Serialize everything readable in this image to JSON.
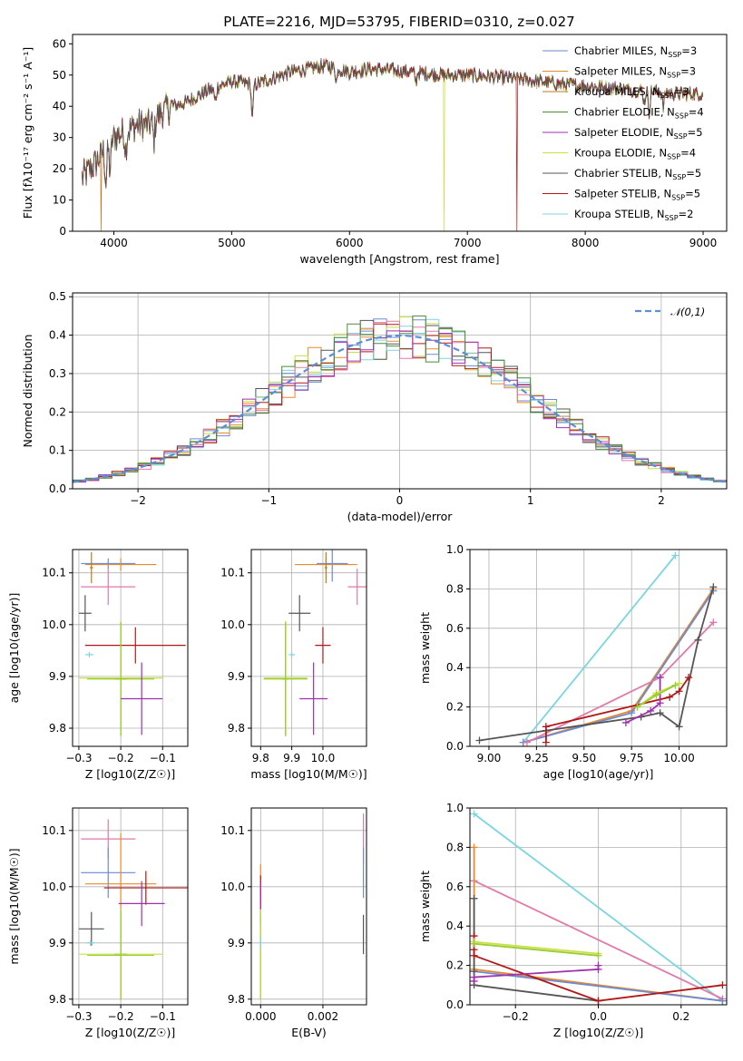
{
  "figure_title": "PLATE=2216, MJD=53795, FIBERID=0310, z=0.027",
  "colors": {
    "Chabrier MILES": "#6d8ad6",
    "Salpeter MILES": "#e58a2d",
    "Kroupa MILES": "#c07818",
    "Chabrier ELODIE": "#4a8a3a",
    "Salpeter ELODIE": "#a030b0",
    "Kroupa ELODIE": "#c8e040",
    "Chabrier STELIB": "#555555",
    "Salpeter STELIB": "#b01818",
    "Kroupa STELIB": "#7ad6de",
    "pink": "#e07aa8",
    "lime": "#9acd32",
    "gauss": "#5b8fd6"
  },
  "chart_data": [
    {
      "id": "spectrum",
      "type": "line",
      "title": "PLATE=2216, MJD=53795, FIBERID=0310, z=0.027",
      "xlabel": "wavelength [Angstrom, rest frame]",
      "ylabel": "Flux [fλ10⁻¹⁷ erg cm⁻² s⁻¹ A⁻¹]",
      "xlim": [
        3650,
        9200
      ],
      "ylim": [
        0,
        63
      ],
      "xticks": [
        "4000",
        "5000",
        "6000",
        "7000",
        "8000",
        "9000"
      ],
      "yticks": [
        "0",
        "10",
        "20",
        "30",
        "40",
        "50",
        "60"
      ],
      "legend_position": "top-right",
      "legend": [
        "Chabrier MILES, N_SSP=3",
        "Salpeter MILES, N_SSP=3",
        "Kroupa MILES, N_SSP=3",
        "Chabrier ELODIE, N_SSP=4",
        "Salpeter ELODIE, N_SSP=5",
        "Kroupa ELODIE, N_SSP=4",
        "Chabrier STELIB, N_SSP=5",
        "Salpeter STELIB, N_SSP=5",
        "Kroupa STELIB, N_SSP=2"
      ],
      "continuum": [
        [
          3730,
          17
        ],
        [
          3850,
          22
        ],
        [
          3920,
          26
        ],
        [
          4000,
          30
        ],
        [
          4100,
          32
        ],
        [
          4200,
          34
        ],
        [
          4300,
          34
        ],
        [
          4400,
          38
        ],
        [
          4500,
          40
        ],
        [
          4600,
          41
        ],
        [
          4800,
          45
        ],
        [
          5000,
          48
        ],
        [
          5200,
          47
        ],
        [
          5500,
          51
        ],
        [
          5800,
          53
        ],
        [
          6000,
          51
        ],
        [
          6200,
          52
        ],
        [
          6500,
          51
        ],
        [
          6800,
          50
        ],
        [
          7000,
          50
        ],
        [
          7400,
          49
        ],
        [
          7800,
          47
        ],
        [
          8200,
          46
        ],
        [
          8500,
          45
        ],
        [
          8800,
          44
        ],
        [
          9000,
          44
        ]
      ],
      "dropouts": [
        {
          "series": "Kroupa ELODIE",
          "x": 6800,
          "y": 0
        },
        {
          "series": "Salpeter STELIB",
          "x": 7420,
          "y": 0
        },
        {
          "series": "Kroupa MILES",
          "x": 3890,
          "y": 0
        }
      ]
    },
    {
      "id": "residuals",
      "type": "step-histogram",
      "xlabel": "(data-model)/error",
      "ylabel": "Normed distribution",
      "xlim": [
        -2.5,
        2.5
      ],
      "ylim": [
        0,
        0.51
      ],
      "xticks": [
        "-2",
        "-1",
        "0",
        "1",
        "2"
      ],
      "yticks": [
        "0.0",
        "0.1",
        "0.2",
        "0.3",
        "0.4",
        "0.5"
      ],
      "legend_position": "top-right",
      "legend": [
        "N(0,1)"
      ],
      "bin_width": 0.1
    },
    {
      "id": "age-Z",
      "type": "errorbar",
      "xlabel": "Z [log10(Z/Z☉)]",
      "ylabel": "age  [log10(age/yr)]",
      "xlim": [
        -0.315,
        -0.04
      ],
      "ylim": [
        9.765,
        10.145
      ],
      "xticks": [
        "-0.3",
        "-0.2",
        "-0.1"
      ],
      "yticks": [
        "9.8",
        "9.9",
        "10.0",
        "10.1"
      ],
      "points": [
        {
          "color": "Chabrier MILES",
          "x": -0.23,
          "xerr": 0.065,
          "y": 10.118,
          "yerr": 0.01
        },
        {
          "color": "Salpeter MILES",
          "x": -0.2,
          "xerr": 0.085,
          "y": 10.116,
          "yerr": 0.012
        },
        {
          "color": "Kroupa MILES",
          "x": -0.27,
          "xerr": 0.004,
          "y": 10.11,
          "yerr": 0.03
        },
        {
          "color": "pink",
          "x": -0.23,
          "xerr": 0.065,
          "y": 10.073,
          "yerr": 0.035
        },
        {
          "color": "Chabrier STELIB",
          "x": -0.285,
          "xerr": 0.015,
          "y": 10.022,
          "yerr": 0.035
        },
        {
          "color": "Salpeter STELIB",
          "x": -0.165,
          "xerr": 0.12,
          "y": 9.96,
          "yerr": 0.035
        },
        {
          "color": "Kroupa STELIB",
          "x": -0.275,
          "xerr": 0.01,
          "y": 9.942,
          "yerr": 0.005
        },
        {
          "color": "Chabrier ELODIE",
          "x": -0.2,
          "xerr": 0.015,
          "y": 9.895,
          "yerr": 0.11
        },
        {
          "color": "Kroupa ELODIE",
          "x": -0.2,
          "xerr": 0.1,
          "y": 9.897,
          "yerr": 0.11
        },
        {
          "color": "lime",
          "x": -0.2,
          "xerr": 0.08,
          "y": 9.895,
          "yerr": 0.11
        },
        {
          "color": "Salpeter ELODIE",
          "x": -0.15,
          "xerr": 0.05,
          "y": 9.857,
          "yerr": 0.07
        }
      ]
    },
    {
      "id": "age-mass",
      "type": "errorbar",
      "xlabel": "mass [log10(M/M☉)]",
      "xlim": [
        9.77,
        10.14
      ],
      "ylim": [
        9.765,
        10.145
      ],
      "xticks": [
        "9.8",
        "9.9",
        "10.0"
      ],
      "yticks": [
        "9.8",
        "9.9",
        "10.0",
        "10.1"
      ],
      "points": [
        {
          "color": "Chabrier MILES",
          "x": 10.03,
          "xerr": 0.05,
          "y": 10.118,
          "yerr": 0.035
        },
        {
          "color": "Salpeter MILES",
          "x": 10.01,
          "xerr": 0.1,
          "y": 10.116,
          "yerr": 0.012
        },
        {
          "color": "Kroupa MILES",
          "x": 10.01,
          "xerr": 0.004,
          "y": 10.11,
          "yerr": 0.03
        },
        {
          "color": "pink",
          "x": 10.11,
          "xerr": 0.03,
          "y": 10.073,
          "yerr": 0.035
        },
        {
          "color": "Chabrier STELIB",
          "x": 9.925,
          "xerr": 0.035,
          "y": 10.022,
          "yerr": 0.035
        },
        {
          "color": "Salpeter STELIB",
          "x": 10.0,
          "xerr": 0.025,
          "y": 9.96,
          "yerr": 0.035
        },
        {
          "color": "Kroupa STELIB",
          "x": 9.9,
          "xerr": 0.01,
          "y": 9.942,
          "yerr": 0.005
        },
        {
          "color": "Chabrier ELODIE",
          "x": 9.88,
          "xerr": 0.01,
          "y": 9.895,
          "yerr": 0.11
        },
        {
          "color": "Kroupa ELODIE",
          "x": 9.88,
          "xerr": 0.07,
          "y": 9.897,
          "yerr": 0.11
        },
        {
          "color": "lime",
          "x": 9.88,
          "xerr": 0.07,
          "y": 9.895,
          "yerr": 0.11
        },
        {
          "color": "Salpeter ELODIE",
          "x": 9.97,
          "xerr": 0.045,
          "y": 9.857,
          "yerr": 0.07
        }
      ]
    },
    {
      "id": "weight-age",
      "type": "line",
      "xlabel": "age  [log10(age/yr)]",
      "ylabel": "mass weight",
      "xlim": [
        8.9,
        10.25
      ],
      "ylim": [
        0,
        1
      ],
      "xticks": [
        "9.00",
        "9.25",
        "9.50",
        "9.75",
        "10.00"
      ],
      "yticks": [
        "0.0",
        "0.2",
        "0.4",
        "0.6",
        "0.8",
        "1.0"
      ],
      "series": [
        {
          "color": "Kroupa STELIB",
          "x": [
            9.18,
            9.98
          ],
          "y": [
            0.02,
            0.97
          ]
        },
        {
          "color": "Salpeter MILES",
          "x": [
            9.18,
            9.75,
            10.18
          ],
          "y": [
            0.02,
            0.18,
            0.8
          ]
        },
        {
          "color": "Chabrier MILES",
          "x": [
            9.18,
            9.75,
            10.18
          ],
          "y": [
            0.02,
            0.17,
            0.79
          ]
        },
        {
          "color": "pink",
          "x": [
            9.2,
            9.9,
            10.18
          ],
          "y": [
            0.02,
            0.35,
            0.63
          ]
        },
        {
          "color": "Chabrier STELIB",
          "x": [
            8.95,
            9.3,
            9.8,
            9.9,
            10.0,
            10.1,
            10.18
          ],
          "y": [
            0.03,
            0.08,
            0.15,
            0.17,
            0.1,
            0.54,
            0.81
          ]
        },
        {
          "color": "Salpeter STELIB",
          "x": [
            9.3,
            9.3,
            9.95,
            10.0,
            10.05
          ],
          "y": [
            0.02,
            0.1,
            0.25,
            0.28,
            0.35
          ]
        },
        {
          "color": "Salpeter ELODIE",
          "x": [
            9.72,
            9.85,
            9.9,
            9.9
          ],
          "y": [
            0.12,
            0.18,
            0.22,
            0.35
          ]
        },
        {
          "color": "Kroupa ELODIE",
          "x": [
            9.78,
            9.88,
            10.0
          ],
          "y": [
            0.2,
            0.27,
            0.32
          ]
        },
        {
          "color": "lime",
          "x": [
            9.78,
            9.88,
            9.98
          ],
          "y": [
            0.2,
            0.26,
            0.31
          ]
        }
      ]
    },
    {
      "id": "mass-Z",
      "type": "errorbar",
      "xlabel": "Z [log10(Z/Z☉)]",
      "ylabel": "mass [log10(M/M☉)]",
      "xlim": [
        -0.315,
        -0.04
      ],
      "ylim": [
        9.79,
        10.14
      ],
      "xticks": [
        "-0.3",
        "-0.2",
        "-0.1"
      ],
      "yticks": [
        "9.8",
        "9.9",
        "10.0",
        "10.1"
      ],
      "points": [
        {
          "color": "pink",
          "x": -0.23,
          "xerr": 0.065,
          "y": 10.085,
          "yerr": 0.035
        },
        {
          "color": "Chabrier MILES",
          "x": -0.23,
          "xerr": 0.065,
          "y": 10.025,
          "yerr": 0.045
        },
        {
          "color": "Salpeter MILES",
          "x": -0.2,
          "xerr": 0.085,
          "y": 10.005,
          "yerr": 0.09
        },
        {
          "color": "Salpeter STELIB",
          "x": -0.14,
          "xerr": 0.1,
          "y": 9.998,
          "yerr": 0.03
        },
        {
          "color": "Salpeter ELODIE",
          "x": -0.15,
          "xerr": 0.055,
          "y": 9.97,
          "yerr": 0.04
        },
        {
          "color": "Chabrier STELIB",
          "x": -0.27,
          "xerr": 0.03,
          "y": 9.925,
          "yerr": 0.03
        },
        {
          "color": "Kroupa STELIB",
          "x": -0.272,
          "xerr": 0.01,
          "y": 9.9,
          "yerr": 0.005
        },
        {
          "color": "Chabrier ELODIE",
          "x": -0.2,
          "xerr": 0.015,
          "y": 9.88,
          "yerr": 0.08
        },
        {
          "color": "Kroupa ELODIE",
          "x": -0.2,
          "xerr": 0.1,
          "y": 9.88,
          "yerr": 0.08
        },
        {
          "color": "lime",
          "x": -0.2,
          "xerr": 0.08,
          "y": 9.878,
          "yerr": 0.08
        }
      ]
    },
    {
      "id": "mass-ebv",
      "type": "errorbar",
      "xlabel": "E(B-V)",
      "xlim": [
        -0.0003,
        0.0034
      ],
      "ylim": [
        9.79,
        10.14
      ],
      "xticks": [
        "0.000",
        "0.002"
      ],
      "yticks": [
        "9.8",
        "9.9",
        "10.0",
        "10.1"
      ],
      "points": [
        {
          "color": "pink",
          "x": 0.0033,
          "xerr": 0,
          "y": 10.085,
          "yerr": 0.045
        },
        {
          "color": "Chabrier MILES",
          "x": 0.0033,
          "xerr": 0,
          "y": 10.025,
          "yerr": 0.045
        },
        {
          "color": "Chabrier STELIB",
          "x": 0.0033,
          "xerr": 0,
          "y": 9.915,
          "yerr": 0.035
        },
        {
          "color": "Salpeter MILES",
          "x": 0.0,
          "xerr": 0,
          "y": 10.005,
          "yerr": 0.035
        },
        {
          "color": "Salpeter STELIB",
          "x": 0.0,
          "xerr": 0,
          "y": 9.99,
          "yerr": 0.03
        },
        {
          "color": "Salpeter ELODIE",
          "x": 0.0,
          "xerr": 0,
          "y": 9.97,
          "yerr": 0.04
        },
        {
          "color": "Chabrier ELODIE",
          "x": 0.0,
          "xerr": 0,
          "y": 9.88,
          "yerr": 0.08
        },
        {
          "color": "Kroupa ELODIE",
          "x": 0.0,
          "xerr": 0,
          "y": 9.88,
          "yerr": 0.08
        },
        {
          "color": "Kroupa STELIB",
          "x": 0.0,
          "xerr": 0,
          "y": 9.9,
          "yerr": 0.01
        }
      ]
    },
    {
      "id": "weight-Z",
      "type": "line",
      "xlabel": "Z [log10(Z/Z☉)]",
      "ylabel": "mass weight",
      "xlim": [
        -0.31,
        0.31
      ],
      "ylim": [
        0,
        1
      ],
      "xticks": [
        "-0.2",
        "0.0",
        "0.2"
      ],
      "yticks": [
        "0.0",
        "0.2",
        "0.4",
        "0.6",
        "0.8",
        "1.0"
      ],
      "series": [
        {
          "color": "Kroupa STELIB",
          "x": [
            -0.3,
            0.3
          ],
          "y": [
            0.97,
            0.02
          ]
        },
        {
          "color": "pink",
          "x": [
            -0.3,
            0.3
          ],
          "y": [
            0.63,
            0.03
          ]
        },
        {
          "color": "Salpeter MILES",
          "x": [
            -0.3,
            -0.3,
            0.3
          ],
          "y": [
            0.8,
            0.18,
            0.02
          ]
        },
        {
          "color": "Chabrier MILES",
          "x": [
            -0.3,
            0.3
          ],
          "y": [
            0.17,
            0.02
          ]
        },
        {
          "color": "Chabrier STELIB",
          "x": [
            -0.3,
            -0.3,
            -0.3,
            0.0
          ],
          "y": [
            0.54,
            0.17,
            0.1,
            0.02
          ]
        },
        {
          "color": "Salpeter STELIB",
          "x": [
            -0.3,
            -0.3,
            -0.3,
            0.0,
            0.3
          ],
          "y": [
            0.35,
            0.28,
            0.25,
            0.02,
            0.1
          ]
        },
        {
          "color": "Salpeter ELODIE",
          "x": [
            -0.3,
            -0.3,
            0.0,
            0.0
          ],
          "y": [
            0.12,
            0.14,
            0.18,
            0.2
          ]
        },
        {
          "color": "Kroupa ELODIE",
          "x": [
            -0.3,
            0.0
          ],
          "y": [
            0.32,
            0.26
          ]
        },
        {
          "color": "lime",
          "x": [
            -0.3,
            0.0
          ],
          "y": [
            0.31,
            0.25
          ]
        }
      ]
    }
  ]
}
